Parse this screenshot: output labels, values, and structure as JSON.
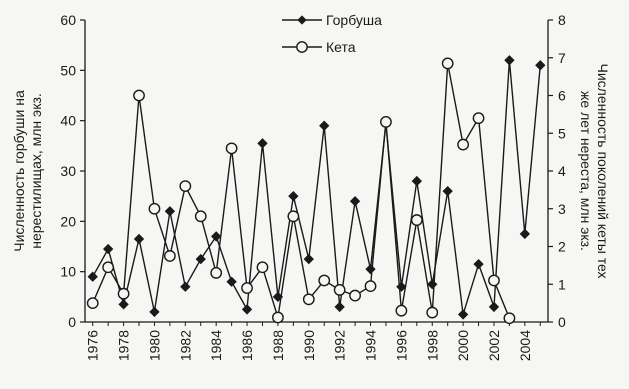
{
  "chart_data": {
    "type": "line",
    "x": [
      1976,
      1977,
      1978,
      1979,
      1980,
      1981,
      1982,
      1983,
      1984,
      1985,
      1986,
      1987,
      1988,
      1989,
      1990,
      1991,
      1992,
      1993,
      1994,
      1995,
      1996,
      1997,
      1998,
      1999,
      2000,
      2001,
      2002,
      2003,
      2004,
      2005
    ],
    "x_tick_labels": [
      "1976",
      "1978",
      "1980",
      "1982",
      "1984",
      "1986",
      "1988",
      "1990",
      "1992",
      "1994",
      "1996",
      "1998",
      "2000",
      "2002",
      "2004"
    ],
    "ylabel_left": "Численность горбуши на нерестилищах, млн экз.",
    "ylabel_right": "Численность поколений кеты тех же лет нереста, млн экз.",
    "ylim_left": [
      0,
      60
    ],
    "yticks_left": [
      "0",
      "10",
      "20",
      "30",
      "40",
      "50",
      "60"
    ],
    "ylim_right": [
      0,
      8
    ],
    "yticks_right": [
      "0",
      "1",
      "2",
      "3",
      "4",
      "5",
      "6",
      "7",
      "8"
    ],
    "legend_placement": "top-center",
    "grid": false,
    "series": [
      {
        "name": "Горбуша",
        "axis": "left",
        "marker": "filled-diamond",
        "color": "#1a1a1a",
        "values": [
          9,
          14.5,
          3.5,
          16.5,
          2,
          22,
          7,
          12.5,
          17,
          8,
          2.5,
          35.5,
          5,
          25,
          12.5,
          39,
          3,
          24,
          10.5,
          39.5,
          7,
          28,
          7.5,
          26,
          1.5,
          11.5,
          3,
          52,
          17.5,
          51
        ]
      },
      {
        "name": "Кета",
        "axis": "right",
        "marker": "open-circle",
        "color": "#1a1a1a",
        "values": [
          0.5,
          1.45,
          0.75,
          6,
          3,
          1.75,
          3.6,
          2.8,
          1.3,
          4.6,
          0.9,
          1.45,
          0.12,
          2.8,
          0.6,
          1.1,
          0.85,
          0.7,
          0.95,
          5.3,
          0.3,
          2.7,
          0.25,
          6.85,
          4.7,
          5.4,
          1.1,
          0.1,
          null,
          null
        ]
      }
    ]
  }
}
